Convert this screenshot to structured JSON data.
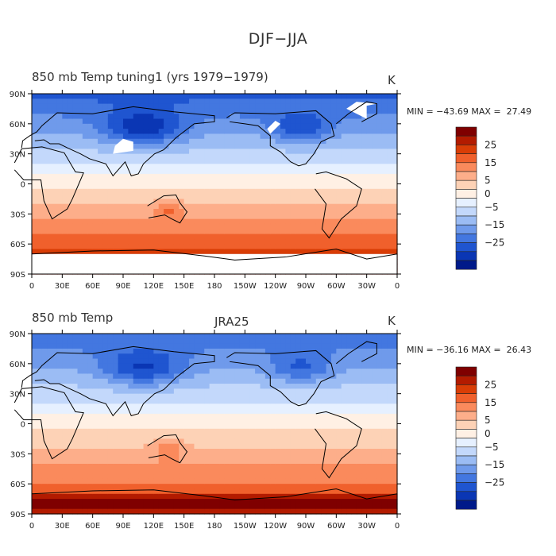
{
  "figure": {
    "title": "DJF−JJA"
  },
  "panels": [
    {
      "id": "tuning1",
      "left_title": "850 mb Temp   tuning1 (yrs 1979−1979)",
      "center_title": "",
      "units": "K",
      "min_max": "MIN = −43.69 MAX =  27.49",
      "has_missing_mask": true
    },
    {
      "id": "jra25",
      "left_title": "850 mb Temp",
      "center_title": "JRA25",
      "units": "K",
      "min_max": "MIN = −36.16 MAX =  26.43",
      "has_missing_mask": false
    }
  ],
  "axes": {
    "lat_ticks": [
      "90N",
      "60N",
      "30N",
      "0",
      "30S",
      "60S",
      "90S"
    ],
    "lon_ticks": [
      "0",
      "30E",
      "60E",
      "90E",
      "120E",
      "150E",
      "180",
      "150W",
      "120W",
      "90W",
      "60W",
      "30W",
      "0"
    ]
  },
  "colorbar": {
    "labels": [
      "25",
      "15",
      "5",
      "0",
      "−5",
      "−15",
      "−25"
    ],
    "colors": [
      "#7f0000",
      "#b31b00",
      "#d93d06",
      "#f0602c",
      "#fa8a5c",
      "#fdae8a",
      "#fdd2b6",
      "#fff0e4",
      "#e6f0ff",
      "#c3d8fb",
      "#9bbcf4",
      "#6f9aeb",
      "#4377e0",
      "#1f55d0",
      "#0a36b4",
      "#001a8a"
    ]
  },
  "colors": {
    "land_outline": "#000000",
    "missing": "#ffffff"
  },
  "chart_data": [
    {
      "type": "heatmap",
      "title": "850 mb Temp   tuning1 (yrs 1979−1979)",
      "units": "K",
      "x_range": [
        0,
        360
      ],
      "y_range": [
        -90,
        90
      ],
      "min": -43.69,
      "max": 27.49,
      "contour_levels": [
        -35,
        -30,
        -25,
        -20,
        -15,
        -10,
        -5,
        0,
        5,
        10,
        15,
        20,
        25,
        30
      ]
    },
    {
      "type": "heatmap",
      "title": "JRA25",
      "units": "K",
      "x_range": [
        0,
        360
      ],
      "y_range": [
        -90,
        90
      ],
      "min": -36.16,
      "max": 26.43,
      "contour_levels": [
        -35,
        -30,
        -25,
        -20,
        -15,
        -10,
        -5,
        0,
        5,
        10,
        15,
        20,
        25,
        30
      ]
    }
  ]
}
